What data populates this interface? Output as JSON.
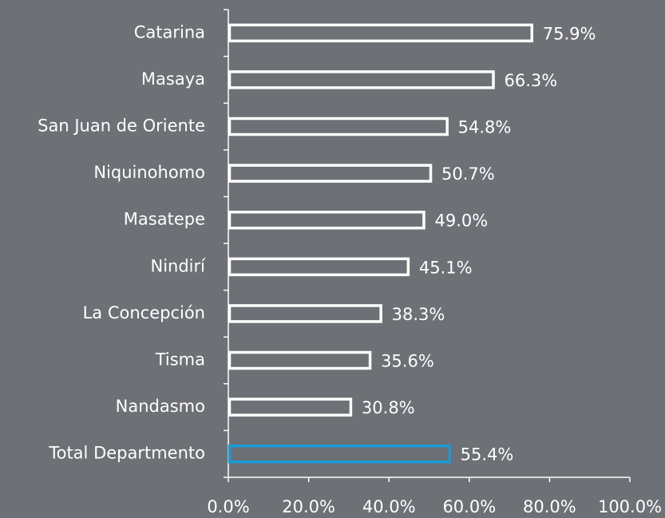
{
  "chart_data": {
    "type": "bar",
    "orientation": "horizontal",
    "categories": [
      "Catarina",
      "Masaya",
      "San Juan de Oriente",
      "Niquinohomo",
      "Masatepe",
      "Nindirí",
      "La Concepción",
      "Tisma",
      "Nandasmo",
      "Total Departmento"
    ],
    "values": [
      75.9,
      66.3,
      54.8,
      50.7,
      49.0,
      45.1,
      38.3,
      35.6,
      30.8,
      55.4
    ],
    "value_labels": [
      "75.9%",
      "66.3%",
      "54.8%",
      "50.7%",
      "49.0%",
      "45.1%",
      "38.3%",
      "35.6%",
      "30.8%",
      "55.4%"
    ],
    "colors": [
      "#ffffff",
      "#ffffff",
      "#ffffff",
      "#ffffff",
      "#ffffff",
      "#ffffff",
      "#ffffff",
      "#ffffff",
      "#ffffff",
      "#1a9ad6"
    ],
    "xlim": [
      0,
      100
    ],
    "xticks": [
      {
        "value": 0,
        "label": "0.0%"
      },
      {
        "value": 20,
        "label": "20.0%"
      },
      {
        "value": 40,
        "label": "40.0%"
      },
      {
        "value": 60,
        "label": "60.0%"
      },
      {
        "value": 80,
        "label": "80.0%"
      },
      {
        "value": 100,
        "label": "100.0%"
      }
    ],
    "grid": false
  }
}
